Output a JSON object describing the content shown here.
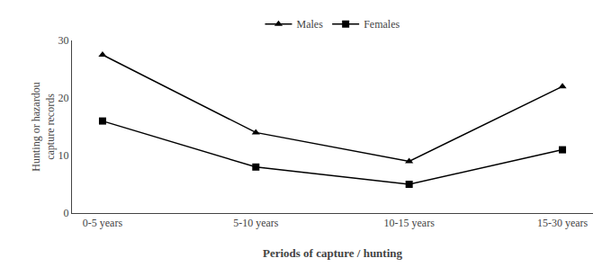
{
  "chart_data": {
    "type": "line",
    "categories": [
      "0-5 years",
      "5-10 years",
      "10-15 years",
      "15-30 years"
    ],
    "series": [
      {
        "name": "Males",
        "color": "#000000",
        "marker": "triangle-up",
        "values": [
          27.5,
          14,
          9,
          22
        ]
      },
      {
        "name": "Females",
        "color": "#000000",
        "marker": "square",
        "values": [
          16,
          8,
          5,
          11
        ]
      }
    ],
    "xlabel": "Periods of capture / hunting",
    "ylabel": "Hunting or hazardou\ncapture records",
    "ylim": [
      0,
      30
    ],
    "yticks": [
      0,
      10,
      20,
      30
    ],
    "grid": false,
    "legend": "top"
  }
}
